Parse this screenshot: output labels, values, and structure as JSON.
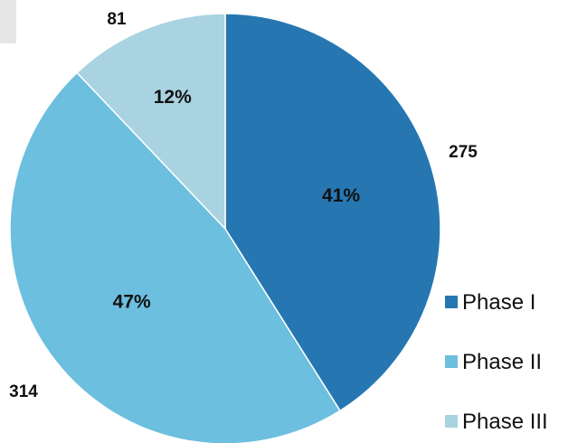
{
  "chart_data": {
    "type": "pie",
    "categories": [
      "Phase I",
      "Phase II",
      "Phase III"
    ],
    "values": [
      275,
      314,
      81
    ],
    "percent_labels": [
      "41%",
      "47%",
      "12%"
    ],
    "count_labels": [
      "275",
      "314",
      "81"
    ],
    "colors": [
      "#2677b1",
      "#6cbfde",
      "#a9d3e0"
    ],
    "legend": {
      "position": "right-bottom",
      "entries": [
        "Phase I",
        "Phase II",
        "Phase III"
      ]
    },
    "start": "12 o'clock",
    "direction": "clockwise"
  }
}
